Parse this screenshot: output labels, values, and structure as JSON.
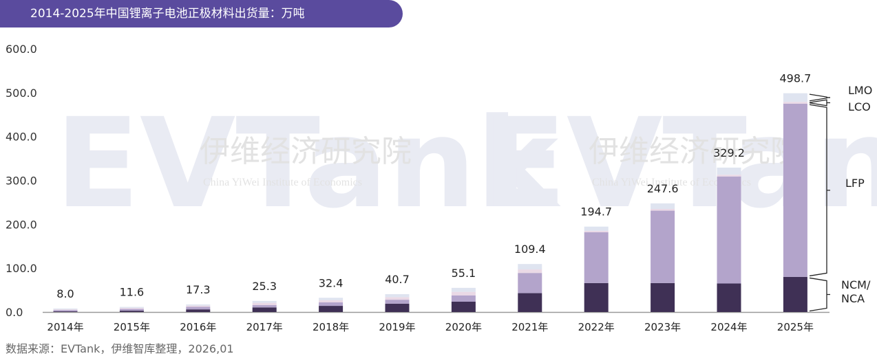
{
  "title": "2014-2025年中国锂离子电池正极材料出货量：万吨",
  "source": "数据来源：EVTank，伊维智库整理，2026,01",
  "watermark": {
    "cn": "伊维经济研究院",
    "cn_short": "伊维智库",
    "en": "China YiWei Institute of Economics",
    "logo": "EVTank"
  },
  "colors": {
    "NCM/NCA": "#3f3055",
    "LFP": "#b3a4cb",
    "LCO": "#ead9e6",
    "LMO": "#dfe4f0",
    "banner": "#5a4b9e"
  },
  "chart_data": {
    "type": "bar",
    "stacked": true,
    "title": "2014-2025年中国锂离子电池正极材料出货量：万吨",
    "categories": [
      "2014年",
      "2015年",
      "2016年",
      "2017年",
      "2018年",
      "2019年",
      "2020年",
      "2021年",
      "2022年",
      "2023年",
      "2024年",
      "2025年"
    ],
    "totals": [
      "8.0",
      "11.6",
      "17.3",
      "25.3",
      "32.4",
      "40.7",
      "55.1",
      "109.4",
      "194.7",
      "247.6",
      "329.2",
      "498.7"
    ],
    "series": [
      {
        "name": "NCM/NCA",
        "values": [
          1.5,
          3,
          6,
          10.5,
          14,
          19,
          23.5,
          43,
          66,
          66,
          65,
          80
        ]
      },
      {
        "name": "LFP",
        "values": [
          3,
          4,
          6,
          5.5,
          8,
          9,
          14.5,
          46,
          116,
          165,
          244,
          395
        ]
      },
      {
        "name": "LCO",
        "values": [
          1.5,
          2,
          2.5,
          5,
          5,
          6,
          8,
          8,
          3,
          4,
          4,
          4
        ]
      },
      {
        "name": "LMO",
        "values": [
          2,
          2.6,
          2.8,
          4.3,
          5.4,
          6.7,
          9.1,
          12.4,
          9.7,
          12.6,
          16.2,
          19.7
        ]
      }
    ],
    "yticks": [
      "0.0",
      "100.0",
      "200.0",
      "300.0",
      "400.0",
      "500.0",
      "600.0"
    ],
    "ylim": [
      0,
      600
    ],
    "grid": false,
    "legend": "right-brackets"
  }
}
